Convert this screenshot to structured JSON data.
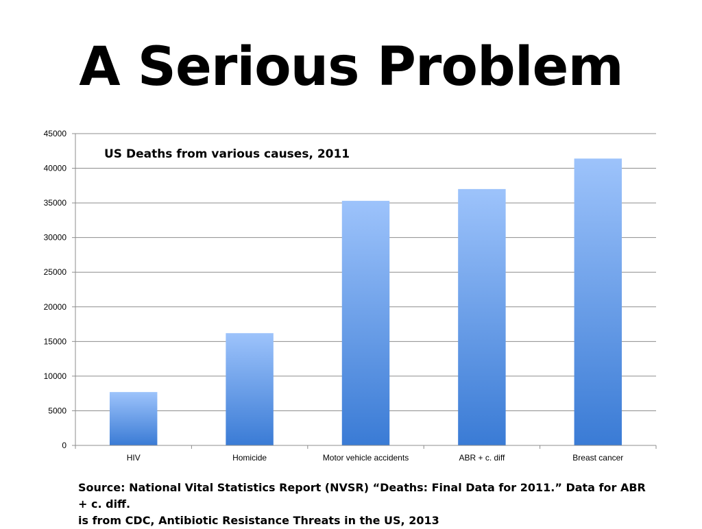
{
  "slide": {
    "title": "A Serious Problem",
    "source_line1": "Source:  National Vital Statistics Report (NVSR) “Deaths: Final Data for 2011.” Data for ABR + c. diff.",
    "source_line2": "is from CDC, Antibiotic Resistance Threats in the US, 2013"
  },
  "chart_data": {
    "type": "bar",
    "title": "US Deaths from various causes, 2011",
    "categories": [
      "HIV",
      "Homicide",
      "Motor vehicle accidents",
      "ABR + c. diff",
      "Breast cancer"
    ],
    "values": [
      7700,
      16200,
      35300,
      37000,
      41400
    ],
    "ylim": [
      0,
      45000
    ],
    "yticks": [
      0,
      5000,
      10000,
      15000,
      20000,
      25000,
      30000,
      35000,
      40000,
      45000
    ],
    "grid": true,
    "xlabel": "",
    "ylabel": "",
    "colors": {
      "bar_top": "#9dc3fb",
      "bar_bottom": "#3a7bd5",
      "grid": "#8c8c8c",
      "axis": "#8c8c8c"
    }
  }
}
